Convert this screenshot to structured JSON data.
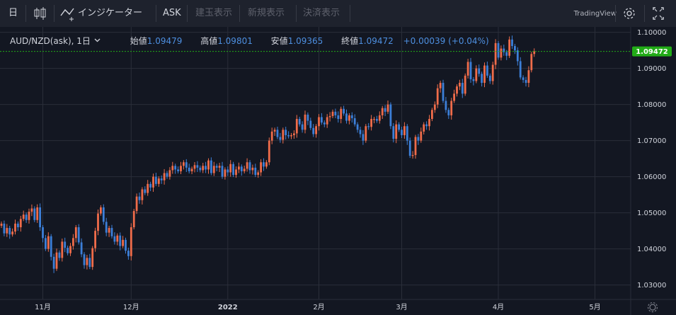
{
  "toolbar": {
    "interval": "日",
    "indicators": "インジケーター",
    "price_source": "ASK",
    "new_order": "建玉表示",
    "new_position": "新規表示",
    "settle": "決済表示",
    "brand": "TradingView"
  },
  "legend": {
    "symbol": "AUD/NZD(ask), 1日",
    "open_label": "始値",
    "open_value": "1.09479",
    "high_label": "高値",
    "high_value": "1.09801",
    "low_label": "安値",
    "low_value": "1.09365",
    "close_label": "終値",
    "close_value": "1.09472",
    "change": "+0.00039 (+0.04%)"
  },
  "colors": {
    "up": "#ef6c4a",
    "down": "#3c7fd8",
    "last_price": "#22ab17"
  },
  "chart_data": {
    "type": "candlestick",
    "symbol": "AUD/NZD(ask)",
    "timeframe": "1日",
    "ylim": [
      1.026,
      1.1015
    ],
    "y_ticks": [
      "1.10000",
      "1.09000",
      "1.08000",
      "1.07000",
      "1.06000",
      "1.05000",
      "1.04000",
      "1.03000"
    ],
    "x_ticks": [
      {
        "label": "11月",
        "bar": 15
      },
      {
        "label": "12月",
        "bar": 47
      },
      {
        "label": "2022",
        "bar": 82,
        "bold": true
      },
      {
        "label": "2月",
        "bar": 115
      },
      {
        "label": "3月",
        "bar": 145
      },
      {
        "label": "4月",
        "bar": 180
      },
      {
        "label": "5月",
        "bar": 215
      }
    ],
    "last_price": "1.09472",
    "closes": [
      1.047,
      1.0443,
      1.0458,
      1.044,
      1.0448,
      1.047,
      1.046,
      1.0483,
      1.0495,
      1.048,
      1.0503,
      1.0512,
      1.048,
      1.0515,
      1.046,
      1.043,
      1.04,
      1.0435,
      1.0378,
      1.0345,
      1.039,
      1.0375,
      1.042,
      1.0403,
      1.0388,
      1.0408,
      1.043,
      1.046,
      1.0418,
      1.0385,
      1.0355,
      1.0375,
      1.035,
      1.0402,
      1.045,
      1.0498,
      1.0515,
      1.0475,
      1.0445,
      1.0458,
      1.0435,
      1.042,
      1.0437,
      1.0408,
      1.0425,
      1.0395,
      1.038,
      1.046,
      1.0505,
      1.0545,
      1.0535,
      1.0565,
      1.0555,
      1.058,
      1.057,
      1.06,
      1.058,
      1.0595,
      1.059,
      1.061,
      1.06,
      1.0618,
      1.063,
      1.062,
      1.0615,
      1.063,
      1.064,
      1.0625,
      1.0615,
      1.0622,
      1.0632,
      1.0625,
      1.0618,
      1.063,
      1.062,
      1.0645,
      1.061,
      1.063,
      1.0625,
      1.063,
      1.06,
      1.062,
      1.0612,
      1.0635,
      1.0605,
      1.062,
      1.0628,
      1.0615,
      1.0622,
      1.064,
      1.0618,
      1.0625,
      1.0605,
      1.0612,
      1.064,
      1.0628,
      1.064,
      1.07,
      1.0725,
      1.073,
      1.071,
      1.0702,
      1.073,
      1.0715,
      1.0712,
      1.0715,
      1.072,
      1.076,
      1.0745,
      1.073,
      1.0772,
      1.0755,
      1.0735,
      1.0718,
      1.074,
      1.0765,
      1.075,
      1.0745,
      1.0765,
      1.0768,
      1.078,
      1.077,
      1.076,
      1.0788,
      1.0775,
      1.0755,
      1.077,
      1.0762,
      1.0745,
      1.073,
      1.0718,
      1.07,
      1.074,
      1.0738,
      1.076,
      1.076,
      1.0755,
      1.077,
      1.079,
      1.078,
      1.08,
      1.074,
      1.0705,
      1.0745,
      1.073,
      1.0715,
      1.074,
      1.07,
      1.0658,
      1.066,
      1.071,
      1.07,
      1.0725,
      1.0745,
      1.074,
      1.076,
      1.0785,
      1.08,
      1.0845,
      1.086,
      1.081,
      1.0785,
      1.077,
      1.081,
      1.083,
      1.085,
      1.086,
      1.083,
      1.088,
      1.0918,
      1.087,
      1.0865,
      1.09,
      1.0885,
      1.086,
      1.0908,
      1.088,
      1.0865,
      1.091,
      1.097,
      1.093,
      1.0955,
      1.0945,
      1.0935,
      1.098,
      1.0962,
      1.095,
      1.092,
      1.0875,
      1.0868,
      1.086,
      1.0895,
      1.094,
      1.0947
    ]
  }
}
